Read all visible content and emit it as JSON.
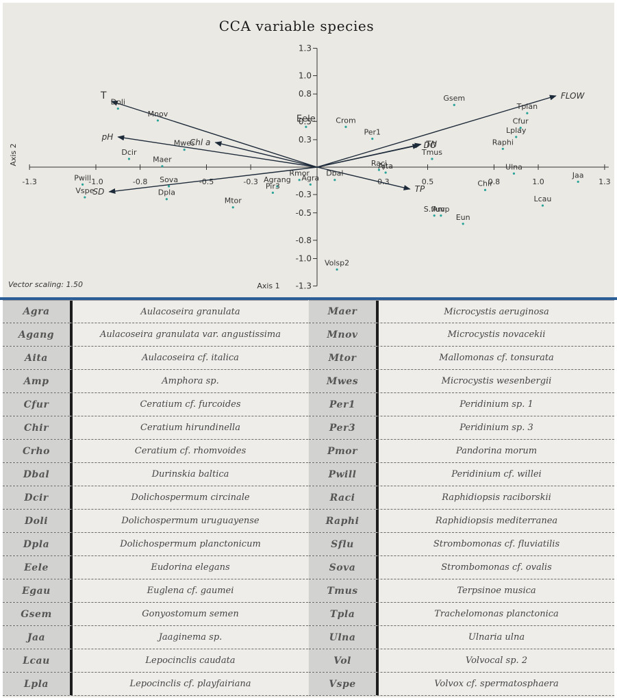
{
  "chart_data": {
    "type": "scatter",
    "title": "CCA variable species",
    "xlabel": "Axis 1",
    "ylabel": "Axis 2",
    "xlim": [
      -1.3,
      1.3
    ],
    "ylim": [
      -1.3,
      1.3
    ],
    "x_ticks": [
      {
        "v": -1.3,
        "label": "-1.3"
      },
      {
        "v": -1.0,
        "label": "-1.0"
      },
      {
        "v": -0.8,
        "label": "-0.8"
      },
      {
        "v": -0.5,
        "label": "-0.5"
      },
      {
        "v": -0.3,
        "label": "-0.3"
      },
      {
        "v": 0.3,
        "label": "0.3"
      },
      {
        "v": 0.5,
        "label": "0.5"
      },
      {
        "v": 0.8,
        "label": "0.8"
      },
      {
        "v": 1.0,
        "label": "1.0"
      },
      {
        "v": 1.3,
        "label": "1.3"
      }
    ],
    "y_ticks": [
      {
        "v": 1.3,
        "label": "1.3"
      },
      {
        "v": 1.0,
        "label": "1.0"
      },
      {
        "v": 0.8,
        "label": "0.8"
      },
      {
        "v": 0.5,
        "label": "0.5"
      },
      {
        "v": 0.3,
        "label": "0.3"
      },
      {
        "v": -0.3,
        "label": "-0.3"
      },
      {
        "v": -0.5,
        "label": "-0.5"
      },
      {
        "v": -0.8,
        "label": "-0.8"
      },
      {
        "v": -1.0,
        "label": "-1.0"
      },
      {
        "v": -1.3,
        "label": "-1.3"
      }
    ],
    "annotation": "Vector scaling: 1.50",
    "vectors": [
      {
        "name": "FLOW",
        "x": 1.08,
        "y": 0.78
      },
      {
        "name": "TN",
        "x": 0.47,
        "y": 0.25
      },
      {
        "name": "DO",
        "x": 0.46,
        "y": 0.24
      },
      {
        "name": "TP",
        "x": 0.42,
        "y": -0.24
      },
      {
        "name": "T",
        "x": -0.93,
        "y": 0.72
      },
      {
        "name": "pH",
        "x": -0.9,
        "y": 0.33
      },
      {
        "name": "Chl a",
        "x": -0.46,
        "y": 0.27
      },
      {
        "name": "SD",
        "x": -0.94,
        "y": -0.27
      }
    ],
    "species": [
      {
        "name": "Gsem",
        "x": 0.62,
        "y": 0.68
      },
      {
        "name": "Tplan",
        "x": 0.95,
        "y": 0.59
      },
      {
        "name": "Cfur",
        "x": 0.92,
        "y": 0.43
      },
      {
        "name": "Lplay",
        "x": 0.9,
        "y": 0.33
      },
      {
        "name": "Raphi",
        "x": 0.84,
        "y": 0.2
      },
      {
        "name": "Crom",
        "x": 0.13,
        "y": 0.44
      },
      {
        "name": "Per1",
        "x": 0.25,
        "y": 0.31
      },
      {
        "name": "Tmus",
        "x": 0.52,
        "y": 0.09
      },
      {
        "name": "Raci",
        "x": 0.28,
        "y": -0.03
      },
      {
        "name": "Aita",
        "x": 0.31,
        "y": -0.06
      },
      {
        "name": "Dbal",
        "x": 0.08,
        "y": -0.14
      },
      {
        "name": "Ulna",
        "x": 0.89,
        "y": -0.07
      },
      {
        "name": "Jaa",
        "x": 1.18,
        "y": -0.16
      },
      {
        "name": "Chir",
        "x": 0.76,
        "y": -0.25
      },
      {
        "name": "Lcau",
        "x": 1.02,
        "y": -0.42
      },
      {
        "name": "S.fluv",
        "x": 0.53,
        "y": -0.53
      },
      {
        "name": "Amp",
        "x": 0.56,
        "y": -0.53
      },
      {
        "name": "Eun",
        "x": 0.66,
        "y": -0.62
      },
      {
        "name": "Volsp2",
        "x": 0.09,
        "y": -1.12
      },
      {
        "name": "Doli",
        "x": -0.9,
        "y": 0.64
      },
      {
        "name": "Mnov",
        "x": -0.72,
        "y": 0.51
      },
      {
        "name": "Mwes",
        "x": -0.6,
        "y": 0.19
      },
      {
        "name": "Dcir",
        "x": -0.85,
        "y": 0.09
      },
      {
        "name": "Maer",
        "x": -0.7,
        "y": 0.01
      },
      {
        "name": "Sova",
        "x": -0.67,
        "y": -0.21
      },
      {
        "name": "Dpla",
        "x": -0.68,
        "y": -0.35
      },
      {
        "name": "Pwill",
        "x": -1.06,
        "y": -0.19
      },
      {
        "name": "Vspe",
        "x": -1.05,
        "y": -0.33
      },
      {
        "name": "Mtor",
        "x": -0.38,
        "y": -0.44
      },
      {
        "name": "Agrang",
        "x": -0.18,
        "y": -0.21
      },
      {
        "name": "Pir3",
        "x": -0.2,
        "y": -0.28
      },
      {
        "name": "Rmor",
        "x": -0.08,
        "y": -0.14
      },
      {
        "name": "Agra",
        "x": -0.03,
        "y": -0.19
      },
      {
        "name": "Eele",
        "x": -0.05,
        "y": 0.44
      }
    ]
  },
  "legend": {
    "left": [
      {
        "code": "Agra",
        "name": "Aulacoseira granulata"
      },
      {
        "code": "Agang",
        "name": "Aulacoseira granulata var. angustissima"
      },
      {
        "code": "Aita",
        "name": "Aulacoseira cf. italica"
      },
      {
        "code": "Amp",
        "name": "Amphora sp."
      },
      {
        "code": "Cfur",
        "name": "Ceratium cf. furcoides"
      },
      {
        "code": "Chir",
        "name": "Ceratium hirundinella"
      },
      {
        "code": "Crho",
        "name": "Ceratium cf. rhomvoides"
      },
      {
        "code": "Dbal",
        "name": "Durinskia baltica"
      },
      {
        "code": "Dcir",
        "name": "Dolichospermum circinale"
      },
      {
        "code": "Doli",
        "name": "Dolichospermum uruguayense"
      },
      {
        "code": "Dpla",
        "name": "Dolichospermum planctonicum"
      },
      {
        "code": "Eele",
        "name": "Eudorina elegans"
      },
      {
        "code": "Egau",
        "name": "Euglena cf. gaumei"
      },
      {
        "code": "Gsem",
        "name": "Gonyostomum semen"
      },
      {
        "code": "Jaa",
        "name": "Jaaginema sp."
      },
      {
        "code": "Lcau",
        "name": "Lepocinclis caudata"
      },
      {
        "code": "Lpla",
        "name": "Lepocinclis cf. playfairiana"
      }
    ],
    "right": [
      {
        "code": "Maer",
        "name": "Microcystis aeruginosa"
      },
      {
        "code": "Mnov",
        "name": "Microcystis novacekii"
      },
      {
        "code": "Mtor",
        "name": "Mallomonas cf. tonsurata"
      },
      {
        "code": "Mwes",
        "name": "Microcystis wesenbergii"
      },
      {
        "code": "Per1",
        "name": "Peridinium sp. 1"
      },
      {
        "code": "Per3",
        "name": "Peridinium sp. 3"
      },
      {
        "code": "Pmor",
        "name": "Pandorina morum"
      },
      {
        "code": "Pwill",
        "name": "Peridinium cf. willei"
      },
      {
        "code": "Raci",
        "name": "Raphidiopsis raciborskii"
      },
      {
        "code": "Raphi",
        "name": "Raphidiopsis mediterranea"
      },
      {
        "code": "Sflu",
        "name": "Strombomonas cf. fluviatilis"
      },
      {
        "code": "Sova",
        "name": "Strombomonas cf. ovalis"
      },
      {
        "code": "Tmus",
        "name": "Terpsinoe musica"
      },
      {
        "code": "Tpla",
        "name": "Trachelomonas planctonica"
      },
      {
        "code": "Ulna",
        "name": "Ulnaria ulna"
      },
      {
        "code": "Vol",
        "name": "Volvocal sp. 2"
      },
      {
        "code": "Vspe",
        "name": "Volvox cf. spermatosphaera"
      }
    ]
  },
  "colors": {
    "panel": "#ebe9e3",
    "axis": "#333333",
    "vector": "#1d2a3a",
    "point": "#2aa39a",
    "divider": "#2b5e96"
  }
}
